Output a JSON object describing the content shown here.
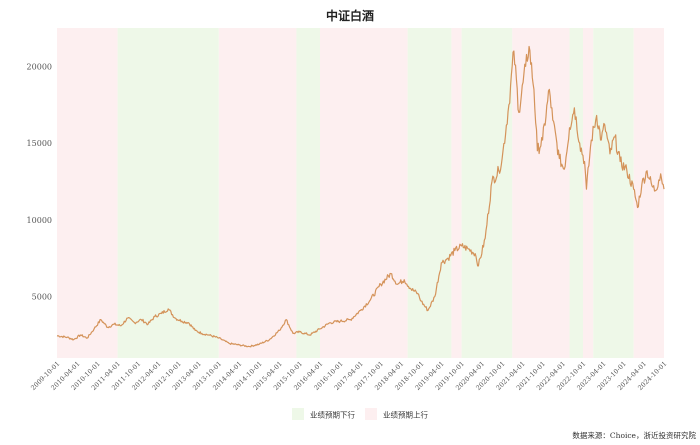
{
  "chart_data": {
    "type": "line",
    "title": "中证白酒",
    "source": "数据来源：Choice，浙近投资研究院",
    "xlim": [
      "2009-10-01",
      "2024-10-01"
    ],
    "ylim": [
      1000,
      22500
    ],
    "yticks": [
      5000,
      10000,
      15000,
      20000
    ],
    "grid": false,
    "legend_position": "bottom-center",
    "x_tick_labels": [
      "2009-10-01",
      "2010-04-01",
      "2010-10-01",
      "2011-04-01",
      "2011-10-01",
      "2012-04-01",
      "2012-10-01",
      "2013-04-01",
      "2013-10-01",
      "2014-04-01",
      "2014-10-01",
      "2015-04-01",
      "2015-10-01",
      "2016-04-01",
      "2016-10-01",
      "2017-04-01",
      "2017-10-01",
      "2018-04-01",
      "2018-10-01",
      "2019-04-01",
      "2019-10-01",
      "2020-04-01",
      "2020-10-01",
      "2021-04-01",
      "2021-10-01",
      "2022-04-01",
      "2022-10-01",
      "2023-04-01",
      "2023-10-01",
      "2024-04-01",
      "2024-10-01"
    ],
    "legend": [
      {
        "label": "业绩预期下行",
        "color": "#eef8e8"
      },
      {
        "label": "业绩预期上行",
        "color": "#fdeff0"
      }
    ],
    "shaded_regions": [
      {
        "start": "2009-10-01",
        "end": "2011-04-01",
        "state": "up"
      },
      {
        "start": "2011-04-01",
        "end": "2013-10-01",
        "state": "down"
      },
      {
        "start": "2013-10-01",
        "end": "2015-09-01",
        "state": "up"
      },
      {
        "start": "2015-09-01",
        "end": "2016-04-01",
        "state": "down"
      },
      {
        "start": "2016-04-01",
        "end": "2018-06-01",
        "state": "up"
      },
      {
        "start": "2018-06-01",
        "end": "2019-07-01",
        "state": "down"
      },
      {
        "start": "2019-07-01",
        "end": "2019-10-01",
        "state": "up"
      },
      {
        "start": "2019-10-01",
        "end": "2021-01-01",
        "state": "down"
      },
      {
        "start": "2021-01-01",
        "end": "2022-06-01",
        "state": "up"
      },
      {
        "start": "2022-06-01",
        "end": "2022-10-01",
        "state": "down"
      },
      {
        "start": "2022-10-01",
        "end": "2023-01-01",
        "state": "up"
      },
      {
        "start": "2023-01-01",
        "end": "2024-01-01",
        "state": "down"
      },
      {
        "start": "2024-01-01",
        "end": "2024-10-01",
        "state": "up"
      }
    ],
    "series": [
      {
        "color": "#d4935a",
        "points": [
          [
            "2009-10-01",
            2450
          ],
          [
            "2010-01-01",
            2350
          ],
          [
            "2010-03-01",
            2200
          ],
          [
            "2010-05-01",
            2500
          ],
          [
            "2010-07-01",
            2300
          ],
          [
            "2010-09-01",
            2900
          ],
          [
            "2010-11-01",
            3500
          ],
          [
            "2011-01-01",
            3000
          ],
          [
            "2011-03-01",
            3200
          ],
          [
            "2011-05-01",
            3100
          ],
          [
            "2011-07-01",
            3600
          ],
          [
            "2011-09-01",
            3300
          ],
          [
            "2011-11-01",
            3500
          ],
          [
            "2012-01-01",
            3200
          ],
          [
            "2012-03-01",
            3700
          ],
          [
            "2012-05-01",
            3900
          ],
          [
            "2012-07-01",
            4200
          ],
          [
            "2012-09-01",
            3600
          ],
          [
            "2012-11-01",
            3400
          ],
          [
            "2013-01-01",
            3300
          ],
          [
            "2013-03-01",
            2800
          ],
          [
            "2013-05-01",
            2600
          ],
          [
            "2013-07-01",
            2500
          ],
          [
            "2013-10-01",
            2300
          ],
          [
            "2014-01-01",
            1950
          ],
          [
            "2014-04-01",
            1850
          ],
          [
            "2014-07-01",
            1750
          ],
          [
            "2014-10-01",
            1900
          ],
          [
            "2015-01-01",
            2200
          ],
          [
            "2015-04-01",
            2800
          ],
          [
            "2015-06-01",
            3500
          ],
          [
            "2015-08-01",
            2600
          ],
          [
            "2015-10-01",
            2700
          ],
          [
            "2016-01-01",
            2500
          ],
          [
            "2016-04-01",
            2900
          ],
          [
            "2016-07-01",
            3300
          ],
          [
            "2016-10-01",
            3400
          ],
          [
            "2017-01-01",
            3500
          ],
          [
            "2017-04-01",
            4100
          ],
          [
            "2017-07-01",
            4800
          ],
          [
            "2017-10-01",
            5800
          ],
          [
            "2018-01-01",
            6500
          ],
          [
            "2018-03-01",
            5800
          ],
          [
            "2018-05-01",
            6100
          ],
          [
            "2018-07-01",
            5500
          ],
          [
            "2018-09-01",
            5200
          ],
          [
            "2018-10-01",
            4700
          ],
          [
            "2018-12-01",
            4100
          ],
          [
            "2019-02-01",
            5000
          ],
          [
            "2019-04-01",
            7200
          ],
          [
            "2019-06-01",
            7500
          ],
          [
            "2019-08-01",
            8000
          ],
          [
            "2019-10-01",
            8300
          ],
          [
            "2019-12-01",
            8100
          ],
          [
            "2020-02-01",
            7800
          ],
          [
            "2020-03-01",
            7000
          ],
          [
            "2020-05-01",
            8800
          ],
          [
            "2020-07-01",
            12500
          ],
          [
            "2020-09-01",
            13200
          ],
          [
            "2020-10-01",
            14000
          ],
          [
            "2020-12-01",
            17500
          ],
          [
            "2021-01-15",
            21000
          ],
          [
            "2021-03-01",
            17000
          ],
          [
            "2021-05-01",
            20000
          ],
          [
            "2021-06-01",
            21300
          ],
          [
            "2021-07-15",
            18500
          ],
          [
            "2021-08-15",
            14500
          ],
          [
            "2021-10-01",
            15200
          ],
          [
            "2021-12-01",
            18500
          ],
          [
            "2022-01-01",
            16500
          ],
          [
            "2022-03-01",
            14000
          ],
          [
            "2022-04-15",
            13300
          ],
          [
            "2022-06-01",
            16000
          ],
          [
            "2022-07-15",
            17300
          ],
          [
            "2022-09-01",
            15000
          ],
          [
            "2022-10-15",
            13800
          ],
          [
            "2022-11-01",
            12000
          ],
          [
            "2022-12-15",
            15200
          ],
          [
            "2023-02-01",
            16800
          ],
          [
            "2023-03-15",
            15200
          ],
          [
            "2023-04-15",
            16200
          ],
          [
            "2023-06-01",
            14300
          ],
          [
            "2023-07-15",
            15400
          ],
          [
            "2023-09-01",
            13800
          ],
          [
            "2023-11-01",
            13200
          ],
          [
            "2024-01-01",
            12000
          ],
          [
            "2024-02-05",
            10800
          ],
          [
            "2024-03-15",
            12300
          ],
          [
            "2024-05-01",
            13200
          ],
          [
            "2024-06-15",
            12200
          ],
          [
            "2024-07-15",
            11900
          ],
          [
            "2024-08-15",
            12600
          ],
          [
            "2024-09-01",
            13000
          ],
          [
            "2024-10-01",
            12000
          ]
        ]
      }
    ]
  }
}
